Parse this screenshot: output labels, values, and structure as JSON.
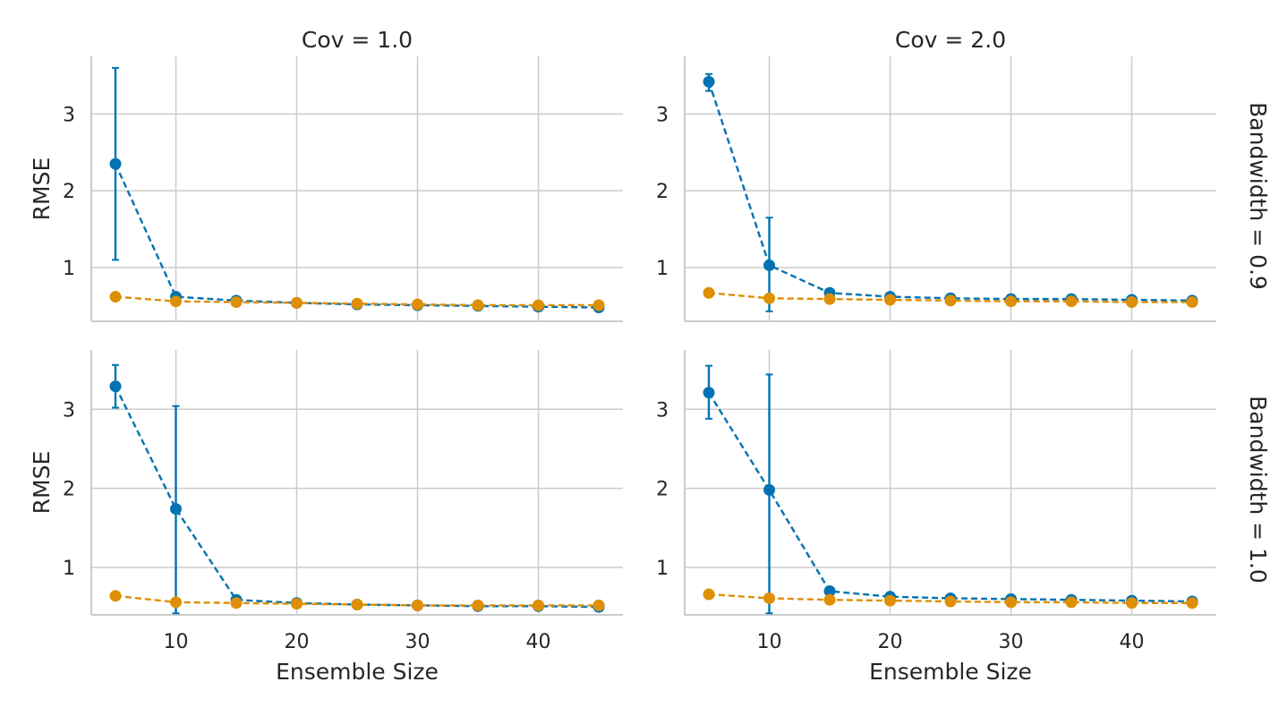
{
  "chart_data": {
    "type": "line",
    "xlabel": "Ensemble Size",
    "ylabel": "RMSE",
    "x_ticks": [
      10,
      20,
      30,
      40
    ],
    "y_ticks": [
      1,
      2,
      3
    ],
    "xlim": [
      3,
      47
    ],
    "ylim_row1": [
      0.3,
      3.75
    ],
    "ylim_row2": [
      0.4,
      3.75
    ],
    "grid": true,
    "colors": {
      "series_blue": "#0173b2",
      "series_orange": "#de8f05"
    },
    "panels": [
      {
        "col_title": "Cov = 1.0",
        "row_title": "",
        "x": [
          5,
          10,
          15,
          20,
          25,
          30,
          35,
          40,
          45
        ],
        "series": [
          {
            "color": "#0173b2",
            "values": [
              2.35,
              0.62,
              0.57,
              0.54,
              0.52,
              0.51,
              0.5,
              0.49,
              0.48
            ],
            "err_low": [
              1.1,
              null,
              null,
              null,
              null,
              null,
              null,
              null,
              null
            ],
            "err_high": [
              3.6,
              null,
              null,
              null,
              null,
              null,
              null,
              null,
              null
            ]
          },
          {
            "color": "#de8f05",
            "values": [
              0.62,
              0.56,
              0.55,
              0.54,
              0.53,
              0.52,
              0.51,
              0.51,
              0.51
            ]
          }
        ]
      },
      {
        "col_title": "Cov = 2.0",
        "row_title": "Bandwidth = 0.9",
        "x": [
          5,
          10,
          15,
          20,
          25,
          30,
          35,
          40,
          45
        ],
        "series": [
          {
            "color": "#0173b2",
            "values": [
              3.42,
              1.03,
              0.67,
              0.62,
              0.6,
              0.59,
              0.59,
              0.58,
              0.57
            ],
            "err_low": [
              3.3,
              0.43,
              null,
              null,
              null,
              null,
              null,
              null,
              null
            ],
            "err_high": [
              3.52,
              1.65,
              null,
              null,
              null,
              null,
              null,
              null,
              null
            ]
          },
          {
            "color": "#de8f05",
            "values": [
              0.67,
              0.6,
              0.59,
              0.58,
              0.57,
              0.56,
              0.56,
              0.55,
              0.55
            ]
          }
        ]
      },
      {
        "col_title": "",
        "row_title": "",
        "x": [
          5,
          10,
          15,
          20,
          25,
          30,
          35,
          40,
          45
        ],
        "series": [
          {
            "color": "#0173b2",
            "values": [
              3.29,
              1.74,
              0.59,
              0.55,
              0.53,
              0.52,
              0.51,
              0.51,
              0.5
            ],
            "err_low": [
              3.02,
              0.42,
              null,
              null,
              null,
              null,
              null,
              null,
              null
            ],
            "err_high": [
              3.56,
              3.04,
              null,
              null,
              null,
              null,
              null,
              null,
              null
            ]
          },
          {
            "color": "#de8f05",
            "values": [
              0.64,
              0.56,
              0.55,
              0.54,
              0.53,
              0.52,
              0.52,
              0.52,
              0.52
            ]
          }
        ]
      },
      {
        "col_title": "",
        "row_title": "Bandwidth = 1.0",
        "x": [
          5,
          10,
          15,
          20,
          25,
          30,
          35,
          40,
          45
        ],
        "series": [
          {
            "color": "#0173b2",
            "values": [
              3.21,
              1.98,
              0.7,
              0.63,
              0.61,
              0.6,
              0.59,
              0.58,
              0.57
            ],
            "err_low": [
              2.88,
              0.42,
              null,
              null,
              null,
              null,
              null,
              null,
              null
            ],
            "err_high": [
              3.55,
              3.44,
              null,
              null,
              null,
              null,
              null,
              null,
              null
            ]
          },
          {
            "color": "#de8f05",
            "values": [
              0.66,
              0.61,
              0.59,
              0.58,
              0.57,
              0.56,
              0.56,
              0.55,
              0.55
            ]
          }
        ]
      }
    ]
  }
}
